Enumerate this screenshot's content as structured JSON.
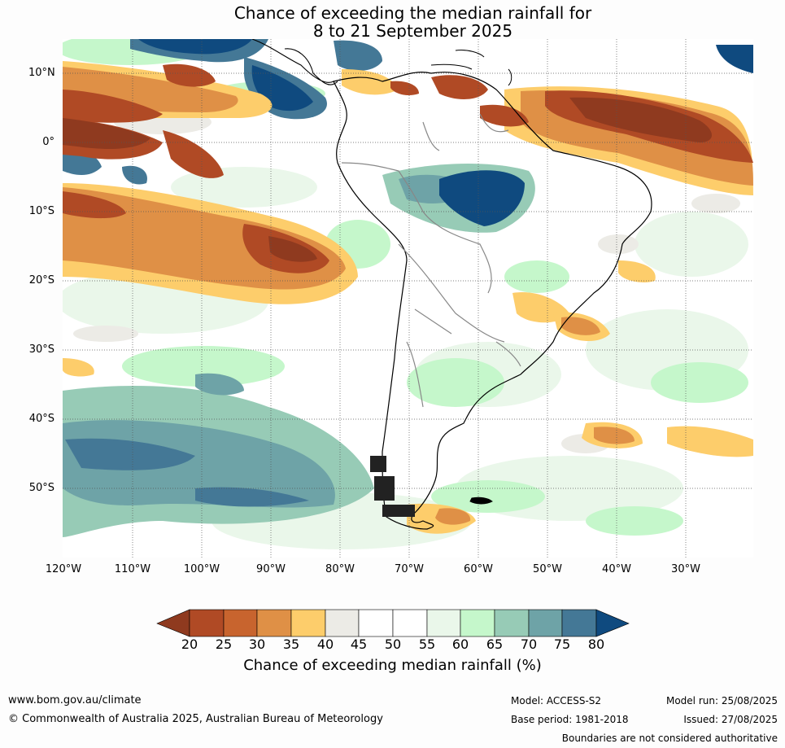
{
  "title": {
    "line1": "Chance of exceeding the median rainfall for",
    "line2": "8 to 21 September 2025"
  },
  "map": {
    "lat_labels": [
      "10°N",
      "0°",
      "10°S",
      "20°S",
      "30°S",
      "40°S",
      "50°S"
    ],
    "lon_labels": [
      "120°W",
      "110°W",
      "100°W",
      "90°W",
      "80°W",
      "70°W",
      "60°W",
      "50°W",
      "40°W",
      "30°W"
    ]
  },
  "colorbar": {
    "title": "Chance of exceeding median rainfall (%)",
    "ticks": [
      "20",
      "25",
      "30",
      "35",
      "40",
      "45",
      "50",
      "55",
      "60",
      "65",
      "70",
      "75",
      "80"
    ],
    "colors": [
      "#8f3a1f",
      "#b04a25",
      "#c8642e",
      "#df9046",
      "#fdcd6b",
      "#ecebe6",
      "#ffffff",
      "#ffffff",
      "#eaf7ea",
      "#c5f7cb",
      "#97cbb6",
      "#6ea3a7",
      "#447896",
      "#0f4a7f"
    ]
  },
  "footer": {
    "url": "www.bom.gov.au/climate",
    "copyright": "© Commonwealth of Australia 2025, Australian Bureau of Meteorology",
    "model": "Model: ACCESS-S2",
    "base_period": "Base period: 1981-2018",
    "model_run": "Model run: 25/08/2025",
    "issued": "Issued: 27/08/2025",
    "disclaimer": "Boundaries are not considered authoritative"
  }
}
